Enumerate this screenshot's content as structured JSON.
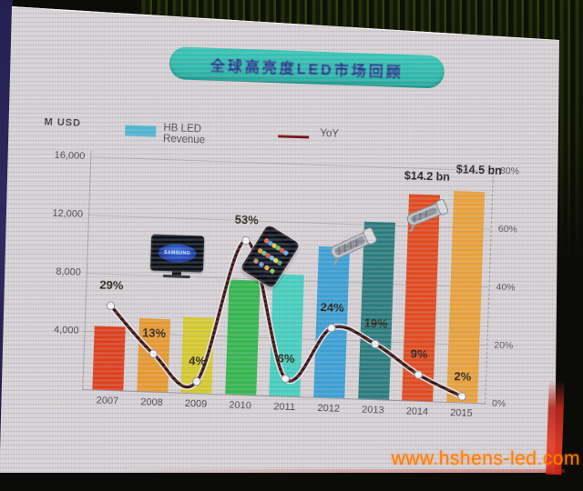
{
  "photo": {
    "watermark": "www.hshens-led.com"
  },
  "slide": {
    "title": "全球高亮度LED市场回顾",
    "unit_label": "M USD",
    "legend": [
      {
        "label": "HB LED Revenue",
        "swatch_color": "#4fb8d6",
        "type": "swatch"
      },
      {
        "label": "YoY",
        "swatch_color": "#7a1616",
        "type": "line"
      }
    ]
  },
  "chart_data": {
    "type": "bar+line",
    "title": "全球高亮度LED市场回顾",
    "categories": [
      "2007",
      "2008",
      "2009",
      "2010",
      "2011",
      "2012",
      "2013",
      "2014",
      "2015"
    ],
    "series": [
      {
        "name": "HB LED Revenue",
        "type": "bar",
        "axis": "left",
        "unit": "M USD",
        "values": [
          4400,
          5000,
          5200,
          7900,
          8400,
          10400,
          12200,
          14200,
          14500
        ],
        "colors": [
          "#e2401c",
          "#eb9c30",
          "#d9ce2e",
          "#33b94f",
          "#46d2c2",
          "#3ba2d8",
          "#2a7d7e",
          "#e64a1e",
          "#eda43c"
        ]
      },
      {
        "name": "YoY",
        "type": "line",
        "axis": "right",
        "unit": "%",
        "values": [
          29,
          13,
          4,
          53,
          6,
          24,
          19,
          9,
          2
        ],
        "labels": [
          "29%",
          "13%",
          "4%",
          "53%",
          "6%",
          "24%",
          "19%",
          "9%",
          "2%"
        ],
        "color": "#3c1010",
        "marker": "white-circle"
      }
    ],
    "value_labels": [
      {
        "category": "2014",
        "text": "$14.2 bn"
      },
      {
        "category": "2015",
        "text": "$14.5 bn"
      }
    ],
    "left_axis": {
      "title": "M USD",
      "ticks": [
        "16,000",
        "12,000",
        "8,000",
        "4,000"
      ],
      "range": [
        0,
        16000
      ],
      "grid": true
    },
    "right_axis": {
      "ticks": [
        "80%",
        "60%",
        "40%",
        "20%",
        "0%"
      ],
      "range": [
        0,
        80
      ],
      "style": "dashed"
    },
    "legend_position": "top",
    "annotations": [
      {
        "name": "samsung-tv",
        "label": "SAMSUNG",
        "near_category": "2008"
      },
      {
        "name": "tablet-ipad",
        "near_category": "2010"
      },
      {
        "name": "led-street-light",
        "near_category": "2012"
      },
      {
        "name": "led-street-light",
        "near_category": "2014"
      }
    ]
  }
}
